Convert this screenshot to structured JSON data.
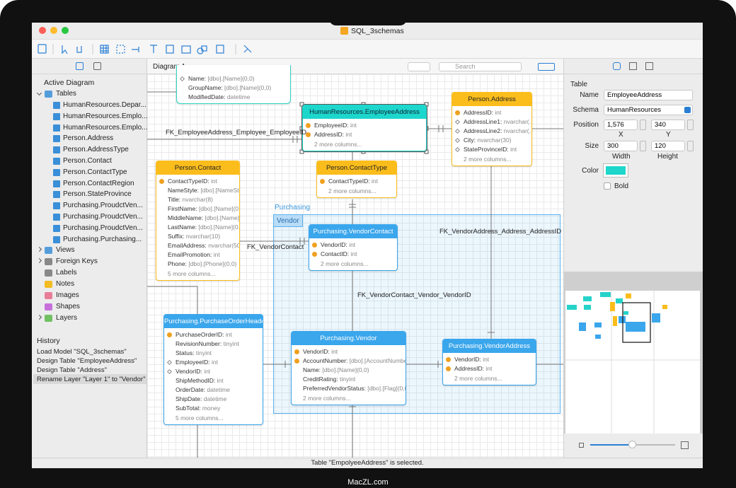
{
  "window": {
    "title": "SQL_3schemas"
  },
  "sidebar": {
    "heading": "Active Diagram",
    "tree": [
      {
        "label": "Tables",
        "children": [
          "HumanResources.Depar...",
          "HumanResources.Emplo...",
          "HumanResources.Emplo...",
          "Person.Address",
          "Person.AddressType",
          "Person.Contact",
          "Person.ContactType",
          "Person.ContactRegion",
          "Person.StateProvince",
          "Purchasing.ProudctVen...",
          "Purchasing.ProudctVen...",
          "Purchasing.ProudctVen...",
          "Purchasing.Purchasing..."
        ]
      },
      {
        "label": "Views"
      },
      {
        "label": "Foreign Keys"
      },
      {
        "label": "Labels"
      },
      {
        "label": "Notes"
      },
      {
        "label": "Images"
      },
      {
        "label": "Shapes"
      },
      {
        "label": "Layers"
      }
    ]
  },
  "history": {
    "title": "History",
    "items": [
      "Load Model \"SQL_3schemas\"",
      "Design Table \"EmployeeAddress\"",
      "Design Table \"Address\"",
      "Rename Layer \"Layer 1\" to \"Vendor\""
    ]
  },
  "diagram": {
    "tab": "Diagram 1",
    "search": "Search",
    "layers": {
      "outer": "Purchasing",
      "inner": "Vendor"
    },
    "tables": [
      {
        "color": "#2fd3c6",
        "columns": [
          {
            "name": "Name:",
            "type": "[dbo].[Name](0,0)",
            "icon": "diamond"
          },
          {
            "name": "GroupName:",
            "type": "[dbo].[Name](0,0)"
          },
          {
            "name": "ModifiedDate:",
            "type": "datetime"
          }
        ]
      },
      {
        "name": "HumanResources.EmployeeAddress",
        "color": "#1dd6cc",
        "columns": [
          {
            "name": "EmployeeID:",
            "type": "int",
            "icon": "key"
          },
          {
            "name": "AddressID:",
            "type": "int",
            "icon": "key"
          }
        ],
        "more": "2 more columns..."
      },
      {
        "name": "Person.Address",
        "color": "#fbbd1c",
        "columns": [
          {
            "name": "AddressID:",
            "type": "int",
            "icon": "key"
          },
          {
            "name": "AddressLine1:",
            "type": "nvarchar(...",
            "icon": "diamond"
          },
          {
            "name": "AddressLine2:",
            "type": "nvarchar(...",
            "icon": "diamond"
          },
          {
            "name": "City:",
            "type": "nvarchar(30)",
            "icon": "diamond"
          },
          {
            "name": "StateProvinceID:",
            "type": "int",
            "icon": "diamond"
          }
        ],
        "more": "2 more columns..."
      },
      {
        "name": "Person.Contact",
        "color": "#fbbd1c",
        "columns": [
          {
            "name": "ContactTypeID:",
            "type": "int",
            "icon": "key"
          },
          {
            "name": "NameStyle:",
            "type": "[dbo].[NameSt..."
          },
          {
            "name": "Title:",
            "type": "nvarchar(8)"
          },
          {
            "name": "FirstName:",
            "type": "[dbo].[Name](0..."
          },
          {
            "name": "MiddleName:",
            "type": "[dbo].[Name]..."
          },
          {
            "name": "LastName:",
            "type": "[dbo].[Name](0..."
          },
          {
            "name": "Suffix:",
            "type": "nvarchar(10)"
          },
          {
            "name": "EmailAddress:",
            "type": "nvarchar(50)"
          },
          {
            "name": "EmailPromotion:",
            "type": "int"
          },
          {
            "name": "Phone:",
            "type": "[dbo].[Phone](0,0)"
          }
        ],
        "more": "5 more columns..."
      },
      {
        "name": "Person.ContactType",
        "color": "#fbbd1c",
        "columns": [
          {
            "name": "ContactTypeID:",
            "type": "int",
            "icon": "key"
          }
        ],
        "more": "2 more columns..."
      },
      {
        "name": "Purchasing.VendorContact",
        "color": "#3aa6ec",
        "columns": [
          {
            "name": "VendorID:",
            "type": "int",
            "icon": "key"
          },
          {
            "name": "ContactID:",
            "type": "int",
            "icon": "key"
          }
        ],
        "more": "2 more columns..."
      },
      {
        "name": "Purchasing.PurchaseOrderHeader",
        "color": "#3aa6ec",
        "columns": [
          {
            "name": "PurchaseOrderID:",
            "type": "int",
            "icon": "key"
          },
          {
            "name": "RevisionNumber:",
            "type": "tinyint"
          },
          {
            "name": "Status:",
            "type": "tinyint"
          },
          {
            "name": "EmployeeID:",
            "type": "int",
            "icon": "diamond"
          },
          {
            "name": "VendorID:",
            "type": "int",
            "icon": "diamond"
          },
          {
            "name": "ShipMethodID:",
            "type": "int"
          },
          {
            "name": "OrderDate:",
            "type": "datetime"
          },
          {
            "name": "ShipDate:",
            "type": "datetime"
          },
          {
            "name": "SubTotal:",
            "type": "money"
          }
        ],
        "more": "5 more columns..."
      },
      {
        "name": "Purchasing.Vendor",
        "color": "#3aa6ec",
        "columns": [
          {
            "name": "VendorID:",
            "type": "int",
            "icon": "key"
          },
          {
            "name": "AccountNumber:",
            "type": "[dbo].[AccountNumber]...",
            "icon": "key"
          },
          {
            "name": "Name:",
            "type": "[dbo].[Name](0,0)"
          },
          {
            "name": "CreditRating:",
            "type": "tinyint"
          },
          {
            "name": "PreferredVendorStatus:",
            "type": "[dbo].[Flag](0,0)"
          }
        ],
        "more": "2 more columns..."
      },
      {
        "name": "Purchasing.VendorAddress",
        "color": "#3aa6ec",
        "columns": [
          {
            "name": "VendorID:",
            "type": "int",
            "icon": "key"
          },
          {
            "name": "AddressID:",
            "type": "int",
            "icon": "key"
          }
        ],
        "more": "2 more columns..."
      }
    ],
    "relations": [
      "FK_EmployeeAddress_Employee_EmployeeID",
      "FK_VendorContact",
      "FK_VendorAddress_Address_AddressID",
      "FK_VendorContact_Vendor_VendorID"
    ]
  },
  "inspector": {
    "title": "Table",
    "name_label": "Name",
    "name": "EmployeeAddress",
    "schema_label": "Schema",
    "schema": "HumanResources",
    "position_label": "Position",
    "x": "1,576",
    "y": "340",
    "x_label": "X",
    "y_label": "Y",
    "size_label": "Size",
    "width": "300",
    "height": "120",
    "width_label": "Width",
    "height_label": "Height",
    "color_label": "Color",
    "color": "#1dd6cc",
    "bold_label": "Bold"
  },
  "status": "Table \"EmpolyeeAddress\" is selected.",
  "watermark": "MacZL.com"
}
